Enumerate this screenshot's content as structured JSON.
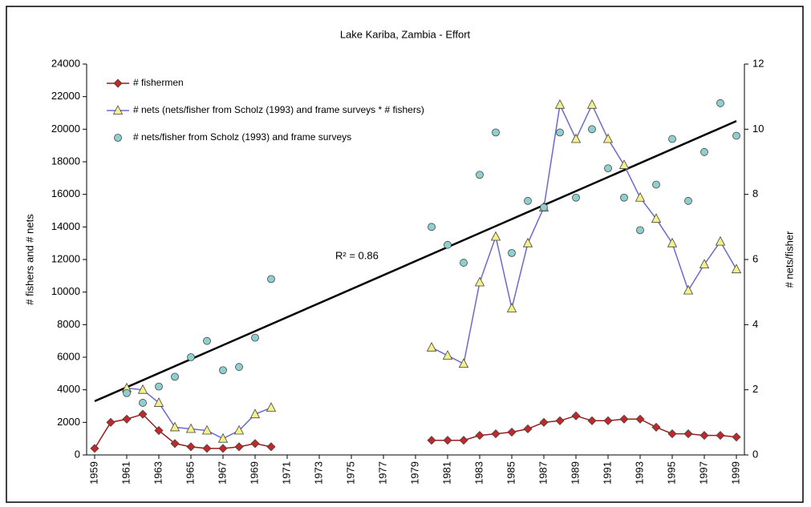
{
  "chart_data": {
    "type": "line",
    "title": "Lake Kariba, Zambia - Effort",
    "y_label": "# fishers and # nets",
    "y2_label": "# nets/fisher",
    "annotation": "R² = 0.86",
    "x": [
      1959,
      1960,
      1961,
      1962,
      1963,
      1964,
      1965,
      1966,
      1967,
      1968,
      1969,
      1970,
      1971,
      1972,
      1973,
      1974,
      1975,
      1976,
      1977,
      1978,
      1979,
      1980,
      1981,
      1982,
      1983,
      1984,
      1985,
      1986,
      1987,
      1988,
      1989,
      1990,
      1991,
      1992,
      1993,
      1994,
      1995,
      1996,
      1997,
      1998,
      1999
    ],
    "xlim": [
      1958.5,
      1999.5
    ],
    "xticks": [
      1959,
      1961,
      1963,
      1965,
      1967,
      1969,
      1971,
      1973,
      1975,
      1977,
      1979,
      1981,
      1983,
      1985,
      1987,
      1989,
      1991,
      1993,
      1995,
      1997,
      1999
    ],
    "ylim": [
      0,
      24000
    ],
    "yticks": [
      0,
      2000,
      4000,
      6000,
      8000,
      10000,
      12000,
      14000,
      16000,
      18000,
      20000,
      22000,
      24000
    ],
    "y2lim": [
      0,
      12
    ],
    "y2ticks": [
      0,
      2,
      4,
      6,
      8,
      10,
      12
    ],
    "series": [
      {
        "name": "# fishermen",
        "color": "#9b1c1c",
        "marker": "diamond",
        "marker_color": "#c0282a",
        "values": [
          400,
          2000,
          2200,
          2500,
          1500,
          700,
          500,
          400,
          400,
          500,
          700,
          500,
          null,
          null,
          null,
          null,
          null,
          null,
          null,
          null,
          null,
          900,
          900,
          900,
          1200,
          1300,
          1400,
          1600,
          2000,
          2100,
          2400,
          2100,
          2100,
          2200,
          2200,
          1700,
          1300,
          1300,
          1200,
          1200,
          1100
        ]
      },
      {
        "name": "# nets (nets/fisher from Scholz (1993) and frame surveys * # fishers)",
        "color": "#6a6acf",
        "marker": "triangle",
        "marker_color": "#f4f08a",
        "values": [
          null,
          null,
          4100,
          4000,
          3200,
          1700,
          1600,
          1500,
          1000,
          1500,
          2500,
          2900,
          null,
          null,
          null,
          null,
          null,
          null,
          null,
          null,
          null,
          6600,
          6100,
          5600,
          10600,
          13400,
          9000,
          13000,
          15200,
          21500,
          19400,
          21500,
          19400,
          17800,
          15800,
          14500,
          13000,
          10100,
          11700,
          13100,
          11400
        ]
      },
      {
        "name": "# nets/fisher from Scholz (1993) and frame surveys",
        "color": null,
        "marker": "circle",
        "marker_color": "#8fcfcf",
        "axis": "y2",
        "values": [
          null,
          null,
          1.9,
          1.6,
          2.1,
          2.4,
          3.0,
          3.5,
          2.6,
          2.7,
          3.6,
          5.4,
          null,
          null,
          null,
          null,
          null,
          null,
          null,
          null,
          null,
          7.0,
          6.45,
          5.9,
          8.6,
          9.9,
          6.2,
          7.8,
          7.6,
          9.9,
          7.9,
          10.0,
          8.8,
          7.9,
          6.9,
          8.3,
          9.7,
          7.8,
          9.3,
          10.8,
          9.8
        ]
      }
    ],
    "trendline": {
      "x": [
        1959,
        1999
      ],
      "values": [
        3300,
        20500
      ],
      "color": "#000000"
    }
  }
}
